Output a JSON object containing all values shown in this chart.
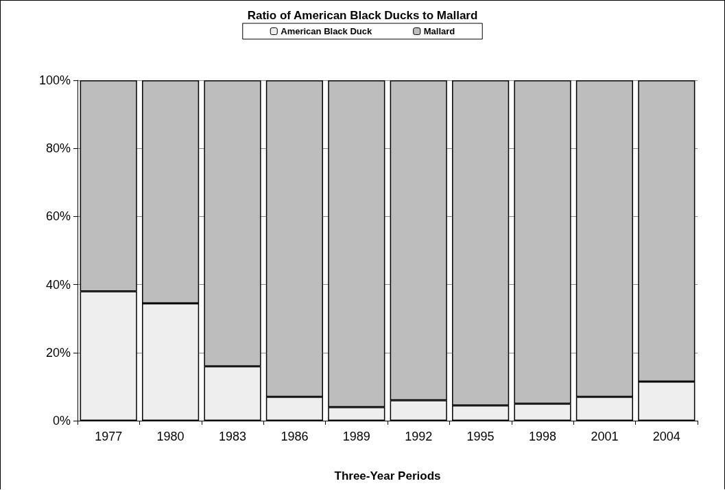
{
  "chart_data": {
    "type": "bar",
    "title": "Ratio of American Black Ducks to Mallard",
    "xlabel": "Three-Year Periods",
    "categories": [
      "1977",
      "1980",
      "1983",
      "1986",
      "1989",
      "1992",
      "1995",
      "1998",
      "2001",
      "2004"
    ],
    "stacked": true,
    "series": [
      {
        "name": "American Black Duck",
        "color": "#eeeeee",
        "values": [
          38,
          34.5,
          16,
          7,
          4,
          6,
          4.5,
          5,
          7,
          11.5
        ]
      },
      {
        "name": "Mallard",
        "color": "#bdbdbd",
        "values": [
          62,
          65.5,
          84,
          93,
          96,
          94,
          95.5,
          95,
          93,
          88.5
        ]
      }
    ],
    "ylim": [
      0,
      100
    ],
    "yticks": [
      {
        "value": 0,
        "label": "0%"
      },
      {
        "value": 20,
        "label": "20%"
      },
      {
        "value": 40,
        "label": "40%"
      },
      {
        "value": 60,
        "label": "60%"
      },
      {
        "value": 80,
        "label": "80%"
      },
      {
        "value": 100,
        "label": "100%"
      }
    ],
    "grid": "y",
    "legend": "top"
  }
}
